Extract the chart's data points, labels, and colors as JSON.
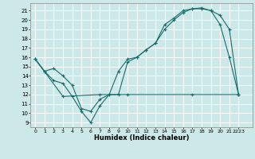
{
  "title": "",
  "xlabel": "Humidex (Indice chaleur)",
  "bg_color": "#cce8e8",
  "grid_color": "#ffffff",
  "line_color": "#1a6b6b",
  "xlim": [
    -0.5,
    23.5
  ],
  "ylim": [
    8.5,
    21.8
  ],
  "yticks": [
    9,
    10,
    11,
    12,
    13,
    14,
    15,
    16,
    17,
    18,
    19,
    20,
    21
  ],
  "xtick_positions": [
    0,
    1,
    2,
    3,
    4,
    5,
    6,
    7,
    8,
    9,
    10,
    11,
    12,
    13,
    14,
    15,
    16,
    17,
    18,
    19,
    20,
    21,
    22
  ],
  "xtick_labels": [
    "0",
    "1",
    "2",
    "3",
    "4",
    "5",
    "6",
    "7",
    "8",
    "9",
    "10",
    "11",
    "12",
    "13",
    "14",
    "15",
    "16",
    "17",
    "18",
    "19",
    "20",
    "21",
    "2223"
  ],
  "line1_x": [
    0,
    1,
    2,
    3,
    4,
    5,
    6,
    7,
    8,
    9,
    10,
    11,
    12,
    13,
    14,
    15,
    16,
    17,
    18,
    19,
    20,
    21,
    22
  ],
  "line1_y": [
    15.8,
    14.5,
    14.8,
    14.0,
    13.0,
    10.5,
    10.2,
    11.5,
    12.0,
    14.5,
    15.8,
    16.0,
    16.8,
    17.5,
    19.0,
    20.0,
    20.8,
    21.2,
    21.3,
    21.0,
    20.5,
    19.0,
    12.0
  ],
  "line2_x": [
    0,
    1,
    2,
    3,
    4,
    5,
    6,
    7,
    8,
    9,
    10,
    11,
    12,
    13,
    14,
    15,
    16,
    17,
    18,
    19,
    20,
    21,
    22
  ],
  "line2_y": [
    15.8,
    14.5,
    13.5,
    13.2,
    11.8,
    10.2,
    9.0,
    10.8,
    12.0,
    12.0,
    15.5,
    16.0,
    16.8,
    17.5,
    19.5,
    20.2,
    21.0,
    21.2,
    21.2,
    21.0,
    19.5,
    16.0,
    12.0
  ],
  "line3_x": [
    0,
    3,
    7,
    10,
    17,
    22
  ],
  "line3_y": [
    15.8,
    11.8,
    12.0,
    12.0,
    12.0,
    12.0
  ]
}
